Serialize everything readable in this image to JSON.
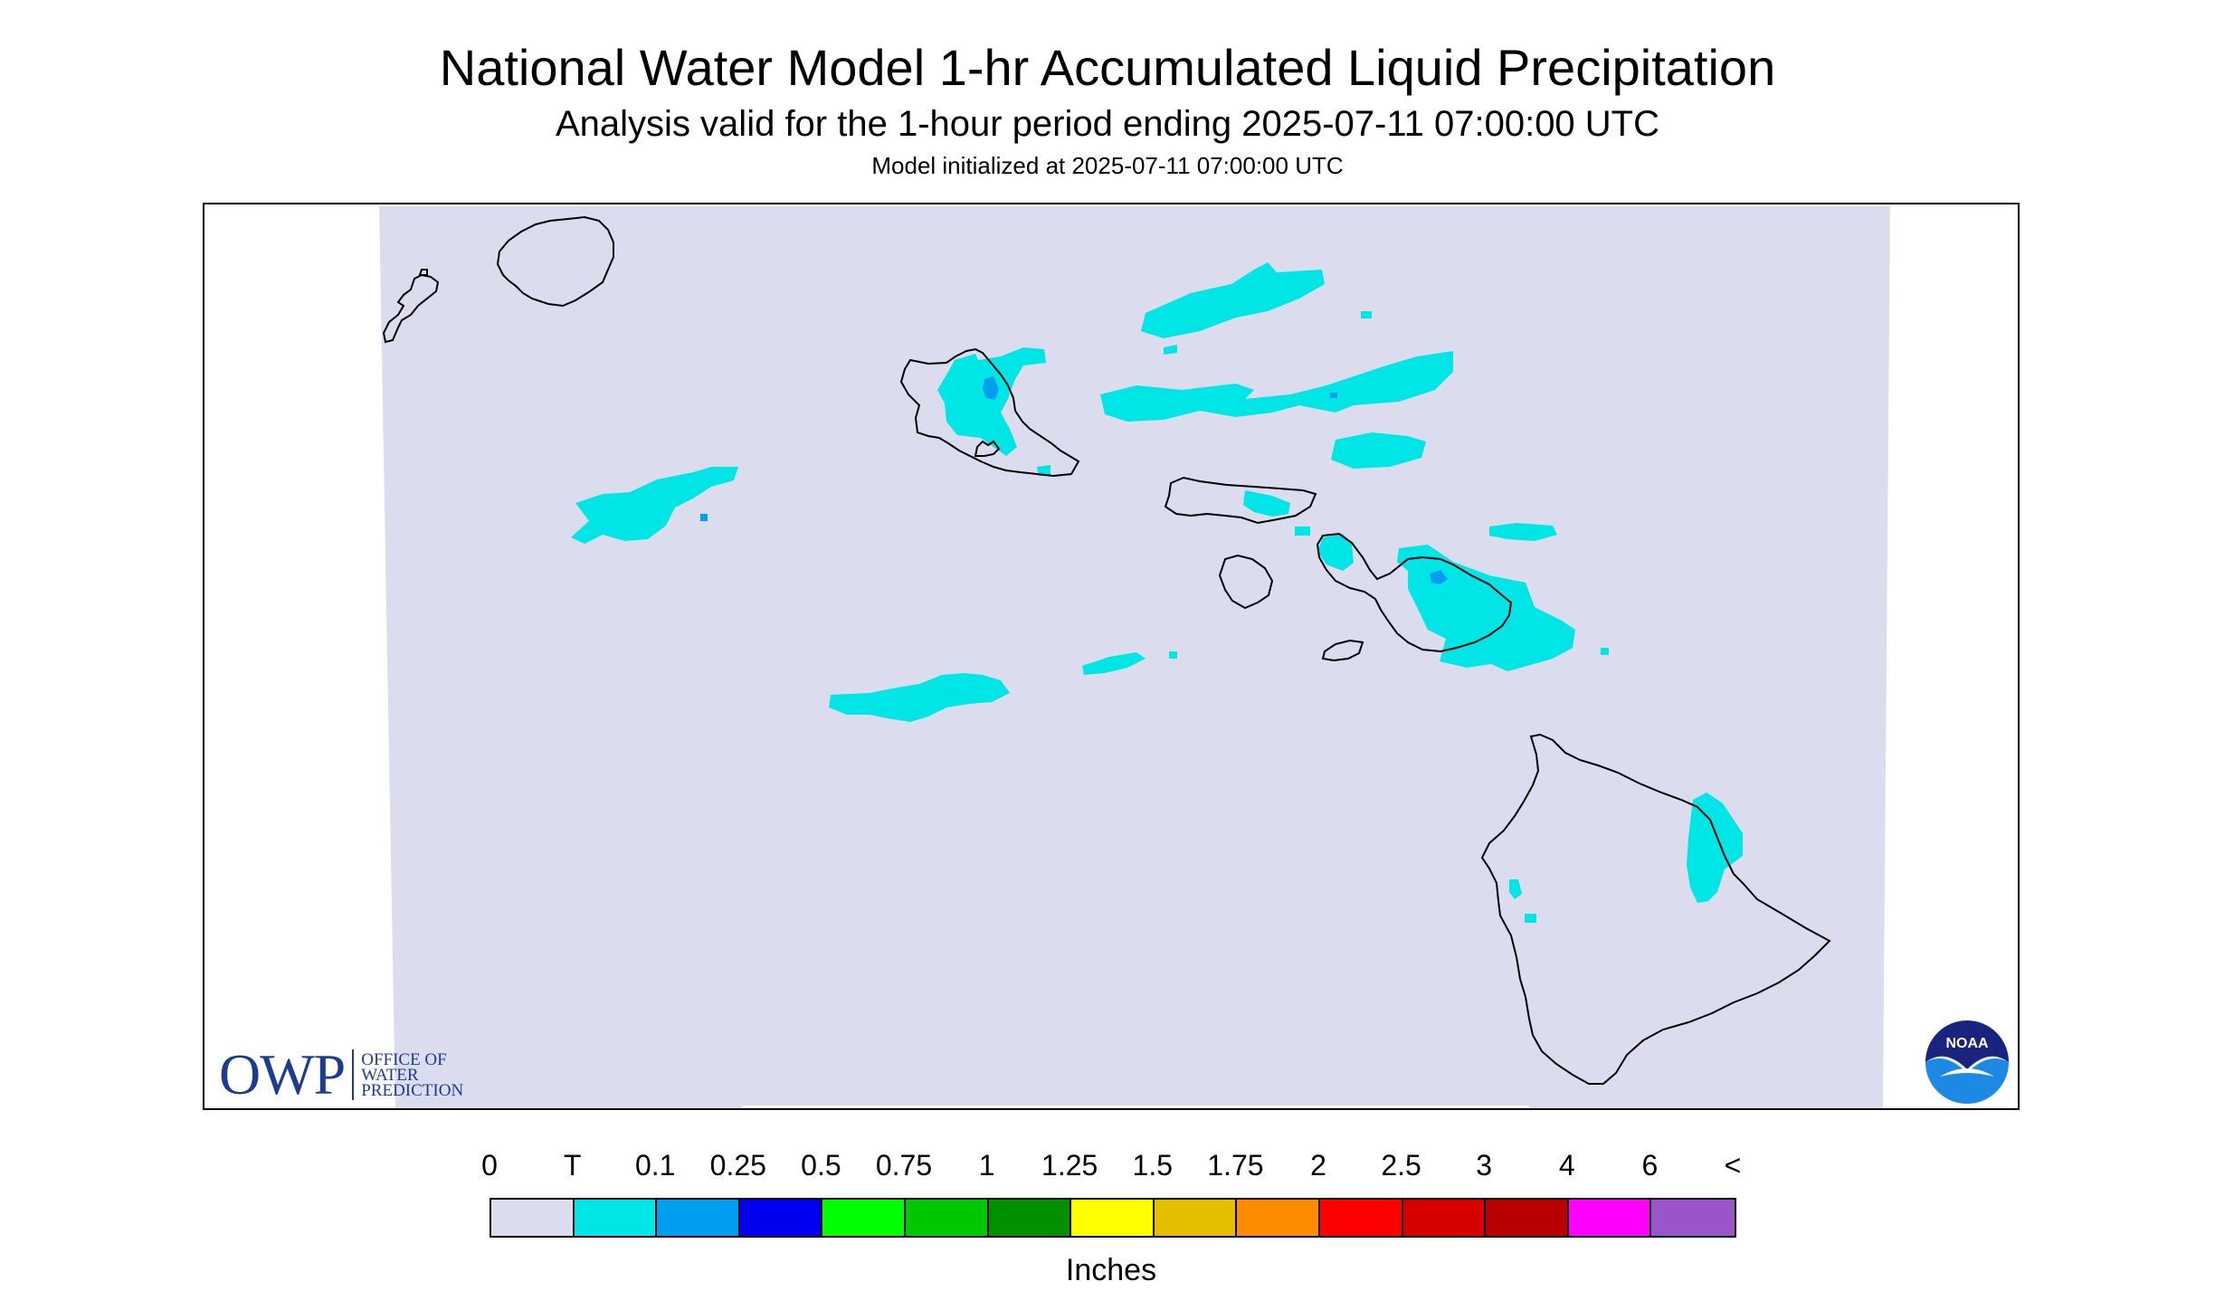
{
  "title": "National Water Model 1-hr Accumulated Liquid Precipitation",
  "subtitle": "Analysis valid for the 1-hour period ending 2025-07-11 07:00:00 UTC",
  "init_text": "Model initialized at 2025-07-11 07:00:00 UTC",
  "map": {
    "region": "Hawaiian Islands",
    "background_color": "#dcdcef",
    "coastline_color": "#000000",
    "precip_trace_color": "#00e5e5",
    "precip_tenth_color": "#009ef0",
    "logos": {
      "owp": {
        "mark": "OWP",
        "text_lines": [
          "OFFICE OF",
          "WATER",
          "PREDICTION"
        ],
        "color": "#1d3c8f"
      },
      "noaa": {
        "text": "NOAA",
        "colors": [
          "#1565c0",
          "#e8f1fb"
        ]
      }
    }
  },
  "legend": {
    "labels": [
      "0",
      "T",
      "0.1",
      "0.25",
      "0.5",
      "0.75",
      "1",
      "1.25",
      "1.5",
      "1.75",
      "2",
      "2.5",
      "3",
      "4",
      "6",
      "<"
    ],
    "colors": [
      "#dcdcef",
      "#00e5e5",
      "#009ef0",
      "#0000f0",
      "#00ff00",
      "#00c800",
      "#009000",
      "#ffff00",
      "#e6be00",
      "#ff8c00",
      "#ff0000",
      "#d70000",
      "#b80000",
      "#ff00ff",
      "#9955c9"
    ],
    "unit": "Inches"
  }
}
